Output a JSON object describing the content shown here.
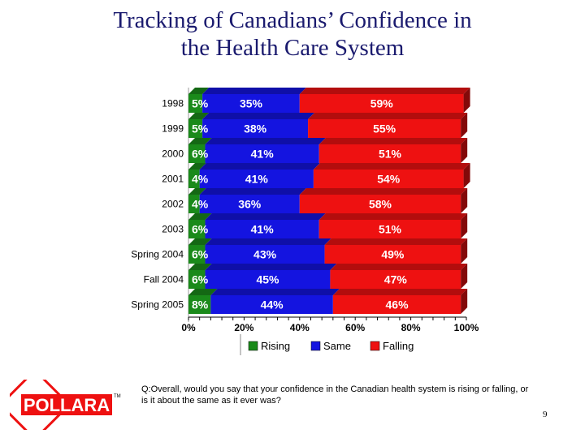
{
  "slide": {
    "title_line1": "Tracking of Canadians’ Confidence in",
    "title_line2": "the Health Care System",
    "question": "Q:Overall, would you say that your confidence in the Canadian health system is rising or falling, or is it about the same as it ever was?",
    "page_number": "9",
    "logo_text": "POLLARA",
    "logo_mark": "TM"
  },
  "colors": {
    "title": "#1a1a6e",
    "rising": "#1a8a1a",
    "same": "#1414e0",
    "falling": "#ee1111"
  },
  "chart_data": {
    "type": "bar",
    "orientation": "horizontal",
    "stacked": true,
    "categories": [
      "1998",
      "1999",
      "2000",
      "2001",
      "2002",
      "2003",
      "Spring 2004",
      "Fall 2004",
      "Spring 2005"
    ],
    "series": [
      {
        "name": "Rising",
        "values": [
          5,
          5,
          6,
          4,
          4,
          6,
          6,
          6,
          8
        ],
        "labels": [
          "5%",
          "5%",
          "6%",
          "4%",
          "4%",
          "6%",
          "6%",
          "6%",
          "8%"
        ]
      },
      {
        "name": "Same",
        "values": [
          35,
          38,
          41,
          41,
          36,
          41,
          43,
          45,
          44
        ],
        "labels": [
          "35%",
          "38%",
          "41%",
          "41%",
          "36%",
          "41%",
          "43%",
          "45%",
          "44%"
        ]
      },
      {
        "name": "Falling",
        "values": [
          59,
          55,
          51,
          54,
          58,
          51,
          49,
          47,
          46
        ],
        "labels": [
          "59%",
          "55%",
          "51%",
          "54%",
          "58%",
          "51%",
          "49%",
          "47%",
          "46%"
        ]
      }
    ],
    "xlim": [
      0,
      100
    ],
    "xticks": [
      "0%",
      "20%",
      "40%",
      "60%",
      "80%",
      "100%"
    ],
    "legend": {
      "position": "bottom",
      "entries": [
        "Rising",
        "Same",
        "Falling"
      ]
    },
    "grid": false
  }
}
